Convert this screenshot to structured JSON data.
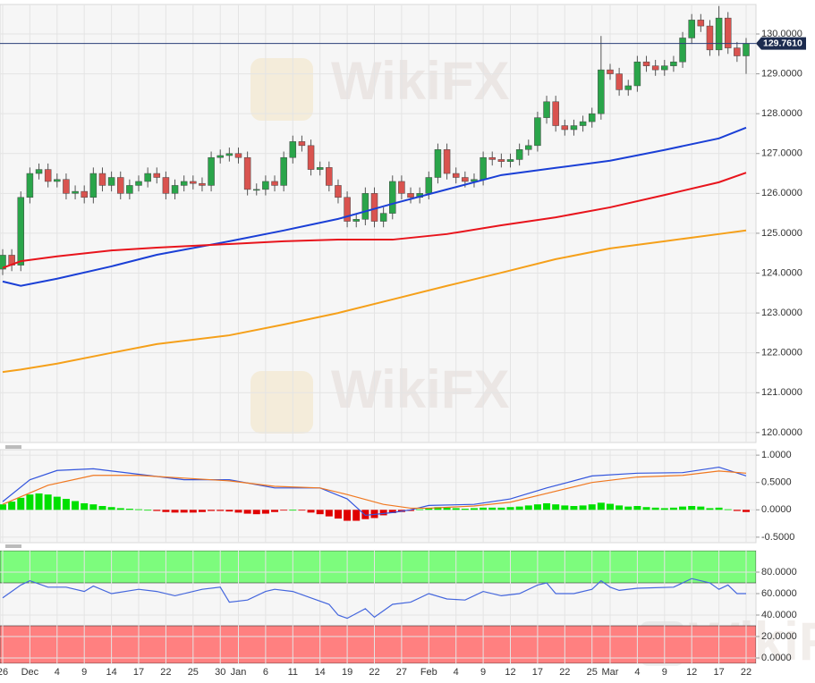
{
  "chart_data": [
    {
      "type": "candlestick",
      "watermark": "WikiFX",
      "categories": [
        "26",
        null,
        null,
        "Dec",
        null,
        null,
        "4",
        null,
        null,
        "9",
        null,
        null,
        "14",
        null,
        null,
        "17",
        null,
        null,
        "22",
        null,
        null,
        "25",
        null,
        null,
        "30",
        null,
        "Jan",
        null,
        null,
        "6",
        null,
        null,
        "11",
        null,
        null,
        "14",
        null,
        null,
        "19",
        null,
        null,
        "22",
        null,
        null,
        "27",
        null,
        null,
        "Feb",
        null,
        null,
        "4",
        null,
        null,
        "9",
        null,
        null,
        "12",
        null,
        null,
        "17",
        null,
        null,
        "22",
        null,
        null,
        "25",
        null,
        "Mar",
        null,
        null,
        "4",
        null,
        null,
        "9",
        null,
        null,
        "12",
        null,
        null,
        "17",
        null,
        null,
        "22"
      ],
      "open": [
        124.1,
        124.45,
        124.2,
        125.9,
        126.5,
        126.6,
        126.3,
        126.35,
        126.0,
        126.05,
        125.9,
        126.5,
        126.2,
        126.4,
        126.0,
        126.2,
        126.3,
        126.5,
        126.4,
        126.0,
        126.2,
        126.3,
        126.25,
        126.2,
        126.9,
        126.95,
        127.0,
        126.9,
        126.1,
        126.1,
        126.3,
        126.2,
        126.9,
        127.3,
        127.2,
        126.6,
        126.65,
        126.2,
        125.9,
        125.3,
        125.35,
        126.0,
        125.3,
        125.5,
        126.3,
        126.0,
        125.9,
        126.0,
        126.4,
        127.1,
        126.5,
        126.4,
        126.3,
        126.35,
        126.9,
        126.85,
        126.8,
        126.85,
        127.1,
        127.2,
        127.9,
        128.3,
        127.7,
        127.6,
        127.7,
        127.8,
        128.0,
        129.1,
        129.0,
        128.6,
        128.7,
        129.3,
        129.2,
        129.1,
        129.2,
        129.3,
        129.9,
        130.35,
        130.2,
        129.6,
        130.4,
        129.65,
        129.45
      ],
      "high": [
        124.6,
        124.6,
        126.05,
        126.65,
        126.75,
        126.75,
        126.5,
        126.5,
        126.2,
        126.2,
        126.65,
        126.65,
        126.55,
        126.55,
        126.35,
        126.45,
        126.65,
        126.65,
        126.55,
        126.35,
        126.45,
        126.45,
        126.4,
        127.05,
        127.1,
        127.15,
        127.15,
        127.05,
        126.25,
        126.45,
        126.45,
        127.05,
        127.45,
        127.45,
        127.35,
        126.8,
        126.8,
        126.35,
        126.05,
        125.5,
        126.15,
        126.15,
        125.65,
        126.45,
        126.45,
        126.15,
        126.15,
        126.55,
        127.25,
        127.25,
        126.65,
        126.55,
        126.5,
        127.05,
        127.05,
        127.0,
        127.0,
        127.25,
        127.35,
        128.05,
        128.45,
        128.45,
        127.85,
        127.85,
        127.95,
        128.15,
        129.95,
        129.25,
        129.15,
        128.85,
        129.45,
        129.45,
        129.35,
        129.35,
        129.45,
        130.05,
        130.5,
        130.5,
        130.35,
        130.7,
        130.55,
        129.8,
        129.9
      ],
      "low": [
        123.95,
        124.05,
        124.05,
        125.75,
        126.35,
        126.15,
        126.15,
        125.85,
        125.85,
        125.75,
        125.75,
        126.05,
        126.05,
        125.85,
        125.85,
        126.05,
        126.15,
        126.25,
        125.85,
        125.85,
        126.05,
        126.1,
        126.05,
        126.05,
        126.75,
        126.8,
        126.75,
        125.95,
        125.95,
        125.95,
        126.05,
        126.05,
        126.75,
        127.05,
        126.45,
        126.45,
        126.05,
        125.75,
        125.15,
        125.15,
        125.2,
        125.15,
        125.15,
        125.35,
        125.85,
        125.75,
        125.75,
        125.85,
        126.25,
        126.35,
        126.25,
        126.15,
        126.15,
        126.2,
        126.7,
        126.65,
        126.65,
        126.7,
        126.95,
        127.05,
        127.75,
        127.55,
        127.45,
        127.45,
        127.55,
        127.65,
        127.85,
        128.85,
        128.45,
        128.45,
        128.55,
        129.05,
        128.95,
        128.95,
        129.05,
        129.15,
        129.75,
        130.05,
        129.45,
        129.45,
        129.5,
        129.3,
        129.0
      ],
      "close": [
        124.45,
        124.2,
        125.9,
        126.5,
        126.6,
        126.3,
        126.35,
        126.0,
        126.05,
        125.9,
        126.5,
        126.2,
        126.4,
        126.0,
        126.2,
        126.3,
        126.5,
        126.4,
        126.0,
        126.2,
        126.3,
        126.25,
        126.2,
        126.9,
        126.95,
        127.0,
        126.9,
        126.1,
        126.1,
        126.3,
        126.2,
        126.9,
        127.3,
        127.2,
        126.6,
        126.65,
        126.2,
        125.9,
        125.3,
        125.35,
        126.0,
        125.3,
        125.5,
        126.3,
        126.0,
        125.9,
        126.0,
        126.4,
        127.1,
        126.5,
        126.4,
        126.3,
        126.35,
        126.9,
        126.85,
        126.8,
        126.85,
        127.1,
        127.2,
        127.9,
        128.3,
        127.7,
        127.6,
        127.7,
        127.8,
        128.0,
        129.1,
        129.0,
        128.6,
        128.7,
        129.3,
        129.2,
        129.1,
        129.2,
        129.3,
        129.9,
        130.35,
        130.2,
        129.6,
        130.4,
        129.65,
        129.45,
        129.761
      ],
      "up_color": "#2aa54a",
      "down_color": "#d9534f",
      "series": [
        {
          "color": "#1a3fd6",
          "x": [
            0,
            2,
            6,
            12,
            17,
            25,
            31,
            37,
            43,
            49,
            55,
            61,
            67,
            73,
            79,
            82
          ],
          "values": [
            123.79,
            123.68,
            123.86,
            124.17,
            124.46,
            124.8,
            125.07,
            125.36,
            125.74,
            126.1,
            126.46,
            126.64,
            126.82,
            127.09,
            127.38,
            127.65
          ]
        },
        {
          "color": "#e8141c",
          "x": [
            0,
            2,
            6,
            12,
            17,
            25,
            31,
            37,
            43,
            49,
            55,
            61,
            67,
            73,
            79,
            82
          ],
          "values": [
            124.13,
            124.3,
            124.42,
            124.57,
            124.64,
            124.73,
            124.8,
            124.84,
            124.84,
            124.98,
            125.2,
            125.4,
            125.65,
            125.96,
            126.28,
            126.52
          ]
        },
        {
          "color": "#f5a01a",
          "x": [
            0,
            2,
            6,
            12,
            17,
            25,
            31,
            37,
            43,
            49,
            55,
            61,
            67,
            73,
            79,
            82
          ],
          "values": [
            121.52,
            121.58,
            121.73,
            122.0,
            122.22,
            122.44,
            122.71,
            123.0,
            123.34,
            123.68,
            124.01,
            124.35,
            124.62,
            124.8,
            124.98,
            125.07
          ]
        }
      ],
      "current_price": {
        "value": 129.761,
        "label": "129.7610"
      },
      "ylim": [
        119.75,
        130.74
      ],
      "yticks": [
        {
          "value": 120,
          "label": "120.0000"
        },
        {
          "value": 121,
          "label": "121.0000"
        },
        {
          "value": 122,
          "label": "122.0000"
        },
        {
          "value": 123,
          "label": "123.0000"
        },
        {
          "value": 124,
          "label": "124.0000"
        },
        {
          "value": 125,
          "label": "125.0000"
        },
        {
          "value": 126,
          "label": "126.0000"
        },
        {
          "value": 127,
          "label": "127.0000"
        },
        {
          "value": 128,
          "label": "128.0000"
        },
        {
          "value": 129,
          "label": "129.0000"
        },
        {
          "value": 130,
          "label": "130.0000"
        }
      ],
      "grid": true
    },
    {
      "type": "macd",
      "histogram": {
        "up_color": "#00e000",
        "down_color": "#e00000",
        "values": [
          0.1,
          0.15,
          0.22,
          0.28,
          0.3,
          0.28,
          0.24,
          0.2,
          0.16,
          0.12,
          0.1,
          0.07,
          0.05,
          0.03,
          0.02,
          0.01,
          0,
          -0.02,
          -0.04,
          -0.05,
          -0.05,
          -0.05,
          -0.04,
          -0.02,
          -0.02,
          -0.03,
          -0.05,
          -0.07,
          -0.08,
          -0.07,
          -0.04,
          -0.01,
          0.0,
          -0.01,
          -0.05,
          -0.08,
          -0.12,
          -0.16,
          -0.2,
          -0.2,
          -0.17,
          -0.15,
          -0.1,
          -0.06,
          -0.04,
          -0.02,
          0.01,
          0.03,
          0.05,
          0.04,
          0.03,
          0.02,
          0.03,
          0.04,
          0.04,
          0.04,
          0.05,
          0.06,
          0.08,
          0.1,
          0.12,
          0.1,
          0.08,
          0.07,
          0.08,
          0.1,
          0.13,
          0.11,
          0.08,
          0.06,
          0.07,
          0.05,
          0.04,
          0.03,
          0.04,
          0.06,
          0.07,
          0.06,
          0.03,
          0.04,
          0.01,
          -0.02,
          -0.04
        ]
      },
      "series": [
        {
          "color": "#3355dd",
          "x": [
            0,
            3,
            6,
            10,
            15,
            20,
            25,
            30,
            35,
            38,
            40,
            43,
            45,
            47,
            52,
            56,
            60,
            65,
            70,
            75,
            79,
            82
          ],
          "values": [
            0.15,
            0.55,
            0.72,
            0.75,
            0.65,
            0.55,
            0.55,
            0.4,
            0.4,
            0.2,
            -0.1,
            -0.05,
            0.0,
            0.08,
            0.1,
            0.2,
            0.4,
            0.62,
            0.67,
            0.68,
            0.78,
            0.62
          ]
        },
        {
          "color": "#f07820",
          "x": [
            0,
            5,
            10,
            15,
            20,
            25,
            30,
            35,
            38,
            42,
            45,
            47,
            52,
            56,
            60,
            65,
            70,
            75,
            79,
            82
          ],
          "values": [
            0.1,
            0.45,
            0.63,
            0.63,
            0.58,
            0.53,
            0.43,
            0.4,
            0.28,
            0.1,
            0.03,
            0.03,
            0.07,
            0.14,
            0.3,
            0.5,
            0.6,
            0.63,
            0.71,
            0.67
          ]
        }
      ],
      "ylim": [
        -0.6,
        1.1
      ],
      "yticks": [
        {
          "value": 1,
          "label": "1.0000"
        },
        {
          "value": 0.5,
          "label": "0.5000"
        },
        {
          "value": 0,
          "label": "0.0000"
        },
        {
          "value": -0.5,
          "label": "-0.5000"
        }
      ],
      "grid": true
    },
    {
      "type": "rsi",
      "zones": [
        {
          "from": 70,
          "to": 100,
          "color": "#7dfc7d"
        },
        {
          "from": -5,
          "to": 30,
          "color": "#ff8080"
        }
      ],
      "series": [
        {
          "color": "#4466dd",
          "x": [
            0,
            2,
            3,
            5,
            7,
            9,
            10,
            12,
            15,
            17,
            19,
            22,
            24,
            25,
            27,
            29,
            30,
            32,
            34,
            36,
            37,
            38,
            40,
            41,
            43,
            45,
            47,
            49,
            51,
            53,
            55,
            57,
            59,
            60,
            61,
            63,
            65,
            66,
            67,
            68,
            70,
            74,
            76,
            78,
            79,
            80,
            81,
            82
          ],
          "values": [
            56,
            68,
            72,
            66,
            66,
            62,
            67,
            60,
            64,
            62,
            58,
            64,
            66,
            52,
            54,
            62,
            64,
            62,
            56,
            50,
            40,
            37,
            46,
            38,
            50,
            52,
            60,
            55,
            54,
            62,
            58,
            60,
            68,
            70,
            60,
            60,
            64,
            72,
            66,
            63,
            65,
            66,
            74,
            70,
            64,
            68,
            60,
            60
          ]
        }
      ],
      "ylim": [
        -5,
        100
      ],
      "yticks": [
        {
          "value": 80,
          "label": "80.0000"
        },
        {
          "value": 60,
          "label": "60.0000"
        },
        {
          "value": 40,
          "label": "40.0000"
        },
        {
          "value": 20,
          "label": "20.0000"
        },
        {
          "value": 0,
          "label": "0.0000"
        }
      ],
      "grid": true
    }
  ]
}
